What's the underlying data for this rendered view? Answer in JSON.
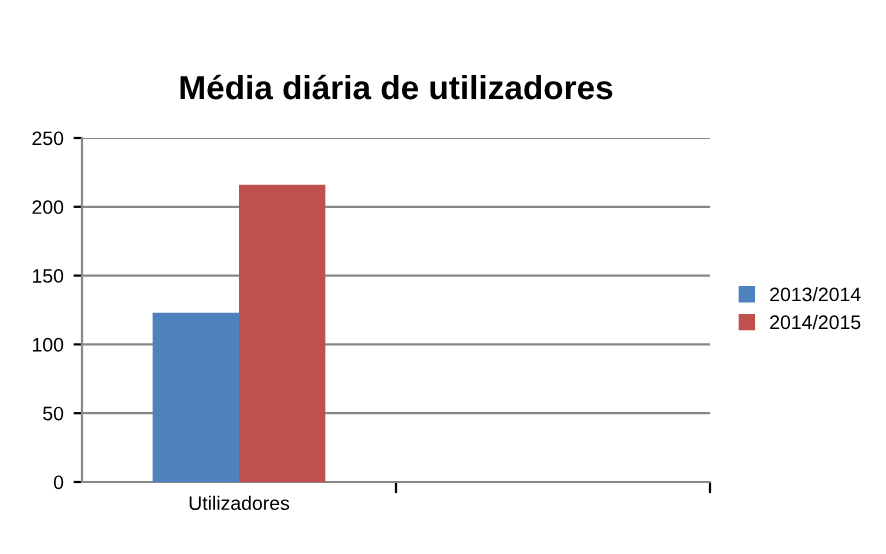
{
  "chart_data": {
    "type": "bar",
    "title": "Média diária de utilizadores",
    "categories": [
      "Utilizadores",
      null
    ],
    "series": [
      {
        "name": "2013/2014",
        "color": "#4f81bd",
        "values": [
          123,
          null
        ]
      },
      {
        "name": "2014/2015",
        "color": "#c0504d",
        "values": [
          216,
          null
        ]
      }
    ],
    "ylim": [
      0,
      250
    ],
    "yticks": [
      0,
      50,
      100,
      150,
      200,
      250
    ],
    "grid": "y",
    "legend": "right"
  }
}
